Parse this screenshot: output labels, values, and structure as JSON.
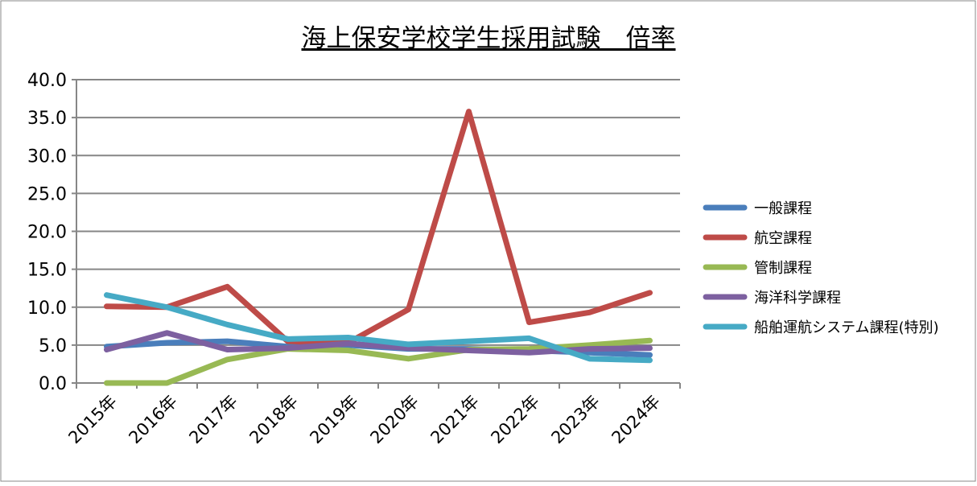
{
  "chart_data": {
    "type": "line",
    "title": "海上保安学校学生採用試験　倍率",
    "xlabel": "",
    "ylabel": "",
    "ylim": [
      0,
      40
    ],
    "yticks": [
      "0.0",
      "5.0",
      "10.0",
      "15.0",
      "20.0",
      "25.0",
      "30.0",
      "35.0",
      "40.0"
    ],
    "categories": [
      "2015年",
      "2016年",
      "2017年",
      "2018年",
      "2019年",
      "2020年",
      "2021年",
      "2022年",
      "2023年",
      "2024年"
    ],
    "grid": true,
    "legend_position": "right",
    "series": [
      {
        "name": "一般課程",
        "color": "#4a7ebb",
        "values": [
          4.8,
          5.3,
          5.5,
          4.8,
          5.0,
          4.5,
          4.5,
          4.3,
          4.0,
          3.7
        ]
      },
      {
        "name": "航空課程",
        "color": "#be4b48",
        "values": [
          10.1,
          10.0,
          12.7,
          5.5,
          5.3,
          9.7,
          35.8,
          8.0,
          9.3,
          11.9
        ]
      },
      {
        "name": "管制課程",
        "color": "#98b954",
        "values": [
          0.0,
          0.0,
          3.1,
          4.5,
          4.3,
          3.2,
          4.4,
          4.5,
          5.0,
          5.6
        ]
      },
      {
        "name": "海洋科学課程",
        "color": "#7d60a0",
        "values": [
          4.4,
          6.6,
          4.4,
          4.6,
          5.2,
          4.6,
          4.3,
          4.0,
          4.5,
          4.6
        ]
      },
      {
        "name": "船舶運航システム課程(特別)",
        "color": "#46aac5",
        "values": [
          11.6,
          10.0,
          7.7,
          5.8,
          6.0,
          5.1,
          5.5,
          5.9,
          3.2,
          3.0
        ]
      }
    ]
  }
}
